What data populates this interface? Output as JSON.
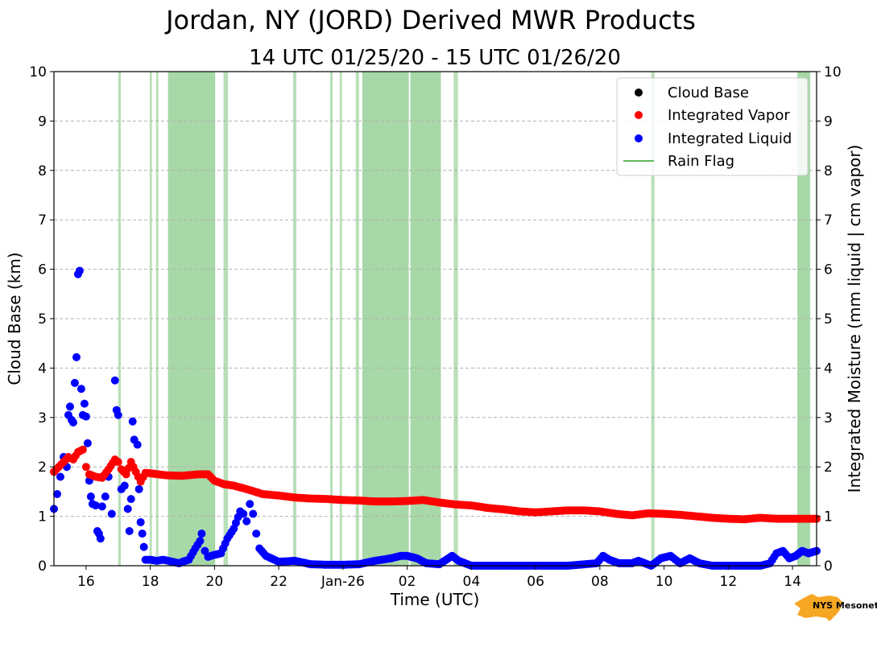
{
  "chart_data": {
    "type": "scatter",
    "title": "Jordan, NY (JORD) Derived MWR Products",
    "subtitle": "14 UTC 01/25/20 - 15 UTC 01/26/20",
    "xlabel": "Time (UTC)",
    "ylabel_left": "Cloud Base (km)",
    "ylabel_right": "Integrated Moisture (mm liquid | cm vapor)",
    "xlim": [
      15.0,
      38.75
    ],
    "ylim": [
      0,
      10
    ],
    "x_ticks": [
      {
        "x": 16,
        "label": "16"
      },
      {
        "x": 18,
        "label": "18"
      },
      {
        "x": 20,
        "label": "20"
      },
      {
        "x": 22,
        "label": "22"
      },
      {
        "x": 24,
        "label": "Jan-26"
      },
      {
        "x": 26,
        "label": "02"
      },
      {
        "x": 28,
        "label": "04"
      },
      {
        "x": 30,
        "label": "06"
      },
      {
        "x": 32,
        "label": "08"
      },
      {
        "x": 34,
        "label": "10"
      },
      {
        "x": 36,
        "label": "12"
      },
      {
        "x": 38,
        "label": "14"
      }
    ],
    "y_ticks": [
      "0",
      "1",
      "2",
      "3",
      "4",
      "5",
      "6",
      "7",
      "8",
      "9",
      "10"
    ],
    "grid": "horizontal dashed",
    "legend_position": "top-right",
    "legend": [
      {
        "name": "Cloud Base",
        "color": "#000000",
        "marker": "dot"
      },
      {
        "name": "Integrated Vapor",
        "color": "#ff0000",
        "marker": "dot"
      },
      {
        "name": "Integrated Liquid",
        "color": "#0000ff",
        "marker": "dot"
      },
      {
        "name": "Rain Flag",
        "color": "#5fb85f",
        "marker": "line"
      }
    ],
    "series": [
      {
        "name": "Integrated Vapor",
        "color": "#ff0000",
        "points": [
          [
            15.0,
            1.9
          ],
          [
            15.15,
            2.0
          ],
          [
            15.3,
            2.1
          ],
          [
            15.45,
            2.2
          ],
          [
            15.6,
            2.15
          ],
          [
            15.75,
            2.3
          ],
          [
            15.9,
            2.35
          ],
          [
            16.0,
            2.0
          ],
          [
            16.1,
            1.85
          ],
          [
            16.3,
            1.8
          ],
          [
            16.5,
            1.78
          ],
          [
            16.7,
            1.95
          ],
          [
            16.9,
            2.15
          ],
          [
            17.0,
            2.1
          ],
          [
            17.1,
            1.95
          ],
          [
            17.25,
            1.85
          ],
          [
            17.4,
            2.1
          ],
          [
            17.55,
            1.9
          ],
          [
            17.7,
            1.7
          ],
          [
            17.85,
            1.88
          ],
          [
            18.0,
            1.87
          ],
          [
            18.5,
            1.83
          ],
          [
            19.0,
            1.82
          ],
          [
            19.5,
            1.85
          ],
          [
            19.8,
            1.85
          ],
          [
            20.0,
            1.72
          ],
          [
            20.3,
            1.65
          ],
          [
            20.6,
            1.62
          ],
          [
            21.0,
            1.55
          ],
          [
            21.5,
            1.45
          ],
          [
            22.0,
            1.42
          ],
          [
            22.5,
            1.38
          ],
          [
            23.0,
            1.36
          ],
          [
            23.5,
            1.35
          ],
          [
            24.0,
            1.33
          ],
          [
            24.5,
            1.32
          ],
          [
            25.0,
            1.3
          ],
          [
            25.5,
            1.3
          ],
          [
            26.0,
            1.31
          ],
          [
            26.5,
            1.33
          ],
          [
            27.0,
            1.28
          ],
          [
            27.5,
            1.24
          ],
          [
            28.0,
            1.22
          ],
          [
            28.5,
            1.17
          ],
          [
            29.0,
            1.14
          ],
          [
            29.5,
            1.1
          ],
          [
            30.0,
            1.08
          ],
          [
            30.5,
            1.1
          ],
          [
            31.0,
            1.12
          ],
          [
            31.5,
            1.12
          ],
          [
            32.0,
            1.1
          ],
          [
            32.5,
            1.05
          ],
          [
            33.0,
            1.02
          ],
          [
            33.5,
            1.06
          ],
          [
            34.0,
            1.05
          ],
          [
            34.5,
            1.03
          ],
          [
            35.0,
            1.0
          ],
          [
            35.5,
            0.97
          ],
          [
            36.0,
            0.95
          ],
          [
            36.5,
            0.94
          ],
          [
            37.0,
            0.97
          ],
          [
            37.5,
            0.95
          ],
          [
            38.0,
            0.95
          ],
          [
            38.5,
            0.95
          ],
          [
            38.75,
            0.95
          ]
        ]
      },
      {
        "name": "Integrated Liquid",
        "color": "#0000ff",
        "points": [
          [
            15.0,
            1.15
          ],
          [
            15.1,
            1.45
          ],
          [
            15.2,
            1.8
          ],
          [
            15.3,
            2.2
          ],
          [
            15.4,
            2.0
          ],
          [
            15.45,
            3.05
          ],
          [
            15.5,
            3.22
          ],
          [
            15.55,
            2.95
          ],
          [
            15.6,
            2.9
          ],
          [
            15.65,
            3.7
          ],
          [
            15.7,
            4.22
          ],
          [
            15.75,
            5.9
          ],
          [
            15.8,
            5.97
          ],
          [
            15.85,
            3.58
          ],
          [
            15.9,
            3.05
          ],
          [
            15.95,
            3.28
          ],
          [
            16.0,
            3.02
          ],
          [
            16.05,
            2.48
          ],
          [
            16.1,
            1.72
          ],
          [
            16.15,
            1.4
          ],
          [
            16.2,
            1.25
          ],
          [
            16.3,
            1.22
          ],
          [
            16.35,
            0.7
          ],
          [
            16.4,
            0.65
          ],
          [
            16.45,
            0.55
          ],
          [
            16.5,
            1.2
          ],
          [
            16.6,
            1.4
          ],
          [
            16.7,
            1.8
          ],
          [
            16.8,
            1.05
          ],
          [
            16.9,
            3.75
          ],
          [
            16.95,
            3.15
          ],
          [
            17.0,
            3.05
          ],
          [
            17.1,
            1.55
          ],
          [
            17.2,
            1.62
          ],
          [
            17.3,
            1.15
          ],
          [
            17.35,
            0.7
          ],
          [
            17.4,
            1.35
          ],
          [
            17.45,
            2.92
          ],
          [
            17.5,
            2.55
          ],
          [
            17.6,
            2.45
          ],
          [
            17.65,
            1.55
          ],
          [
            17.7,
            0.88
          ],
          [
            17.75,
            0.65
          ],
          [
            17.8,
            0.38
          ],
          [
            17.85,
            0.12
          ],
          [
            18.0,
            0.12
          ],
          [
            18.2,
            0.1
          ],
          [
            18.4,
            0.12
          ],
          [
            18.7,
            0.08
          ],
          [
            18.9,
            0.05
          ],
          [
            19.0,
            0.08
          ],
          [
            19.2,
            0.12
          ],
          [
            19.4,
            0.35
          ],
          [
            19.55,
            0.5
          ],
          [
            19.6,
            0.65
          ],
          [
            19.7,
            0.3
          ],
          [
            19.8,
            0.18
          ],
          [
            20.0,
            0.22
          ],
          [
            20.2,
            0.25
          ],
          [
            20.4,
            0.55
          ],
          [
            20.6,
            0.75
          ],
          [
            20.8,
            1.1
          ],
          [
            20.9,
            1.05
          ],
          [
            21.0,
            0.9
          ],
          [
            21.1,
            1.25
          ],
          [
            21.2,
            1.05
          ],
          [
            21.3,
            0.65
          ],
          [
            21.4,
            0.35
          ],
          [
            21.6,
            0.2
          ],
          [
            22.0,
            0.08
          ],
          [
            22.5,
            0.1
          ],
          [
            23.0,
            0.03
          ],
          [
            23.5,
            0.02
          ],
          [
            24.0,
            0.02
          ],
          [
            24.5,
            0.03
          ],
          [
            25.0,
            0.1
          ],
          [
            25.5,
            0.15
          ],
          [
            25.8,
            0.2
          ],
          [
            26.0,
            0.2
          ],
          [
            26.3,
            0.15
          ],
          [
            26.6,
            0.05
          ],
          [
            27.0,
            0.03
          ],
          [
            27.4,
            0.2
          ],
          [
            27.6,
            0.1
          ],
          [
            28.0,
            0.0
          ],
          [
            29.0,
            0.0
          ],
          [
            30.0,
            0.0
          ],
          [
            31.0,
            0.0
          ],
          [
            31.9,
            0.05
          ],
          [
            32.1,
            0.2
          ],
          [
            32.3,
            0.12
          ],
          [
            32.6,
            0.05
          ],
          [
            33.0,
            0.05
          ],
          [
            33.2,
            0.1
          ],
          [
            33.6,
            0.0
          ],
          [
            33.9,
            0.15
          ],
          [
            34.2,
            0.2
          ],
          [
            34.5,
            0.05
          ],
          [
            34.8,
            0.15
          ],
          [
            35.1,
            0.05
          ],
          [
            35.5,
            0.0
          ],
          [
            36.0,
            0.0
          ],
          [
            36.5,
            0.0
          ],
          [
            37.0,
            0.0
          ],
          [
            37.3,
            0.05
          ],
          [
            37.5,
            0.25
          ],
          [
            37.7,
            0.3
          ],
          [
            37.9,
            0.15
          ],
          [
            38.1,
            0.2
          ],
          [
            38.3,
            0.3
          ],
          [
            38.5,
            0.25
          ],
          [
            38.75,
            0.3
          ]
        ]
      }
    ],
    "rain_flag_intervals": [
      [
        17.0,
        17.08
      ],
      [
        17.98,
        18.05
      ],
      [
        18.18,
        18.25
      ],
      [
        18.55,
        20.02
      ],
      [
        20.28,
        20.42
      ],
      [
        22.45,
        22.55
      ],
      [
        23.6,
        23.68
      ],
      [
        23.9,
        23.97
      ],
      [
        24.4,
        24.5
      ],
      [
        24.6,
        26.05
      ],
      [
        26.1,
        27.05
      ],
      [
        27.45,
        27.58
      ],
      [
        33.6,
        33.7
      ],
      [
        38.15,
        38.55
      ]
    ],
    "logo_text": "NYS Mesonet"
  }
}
